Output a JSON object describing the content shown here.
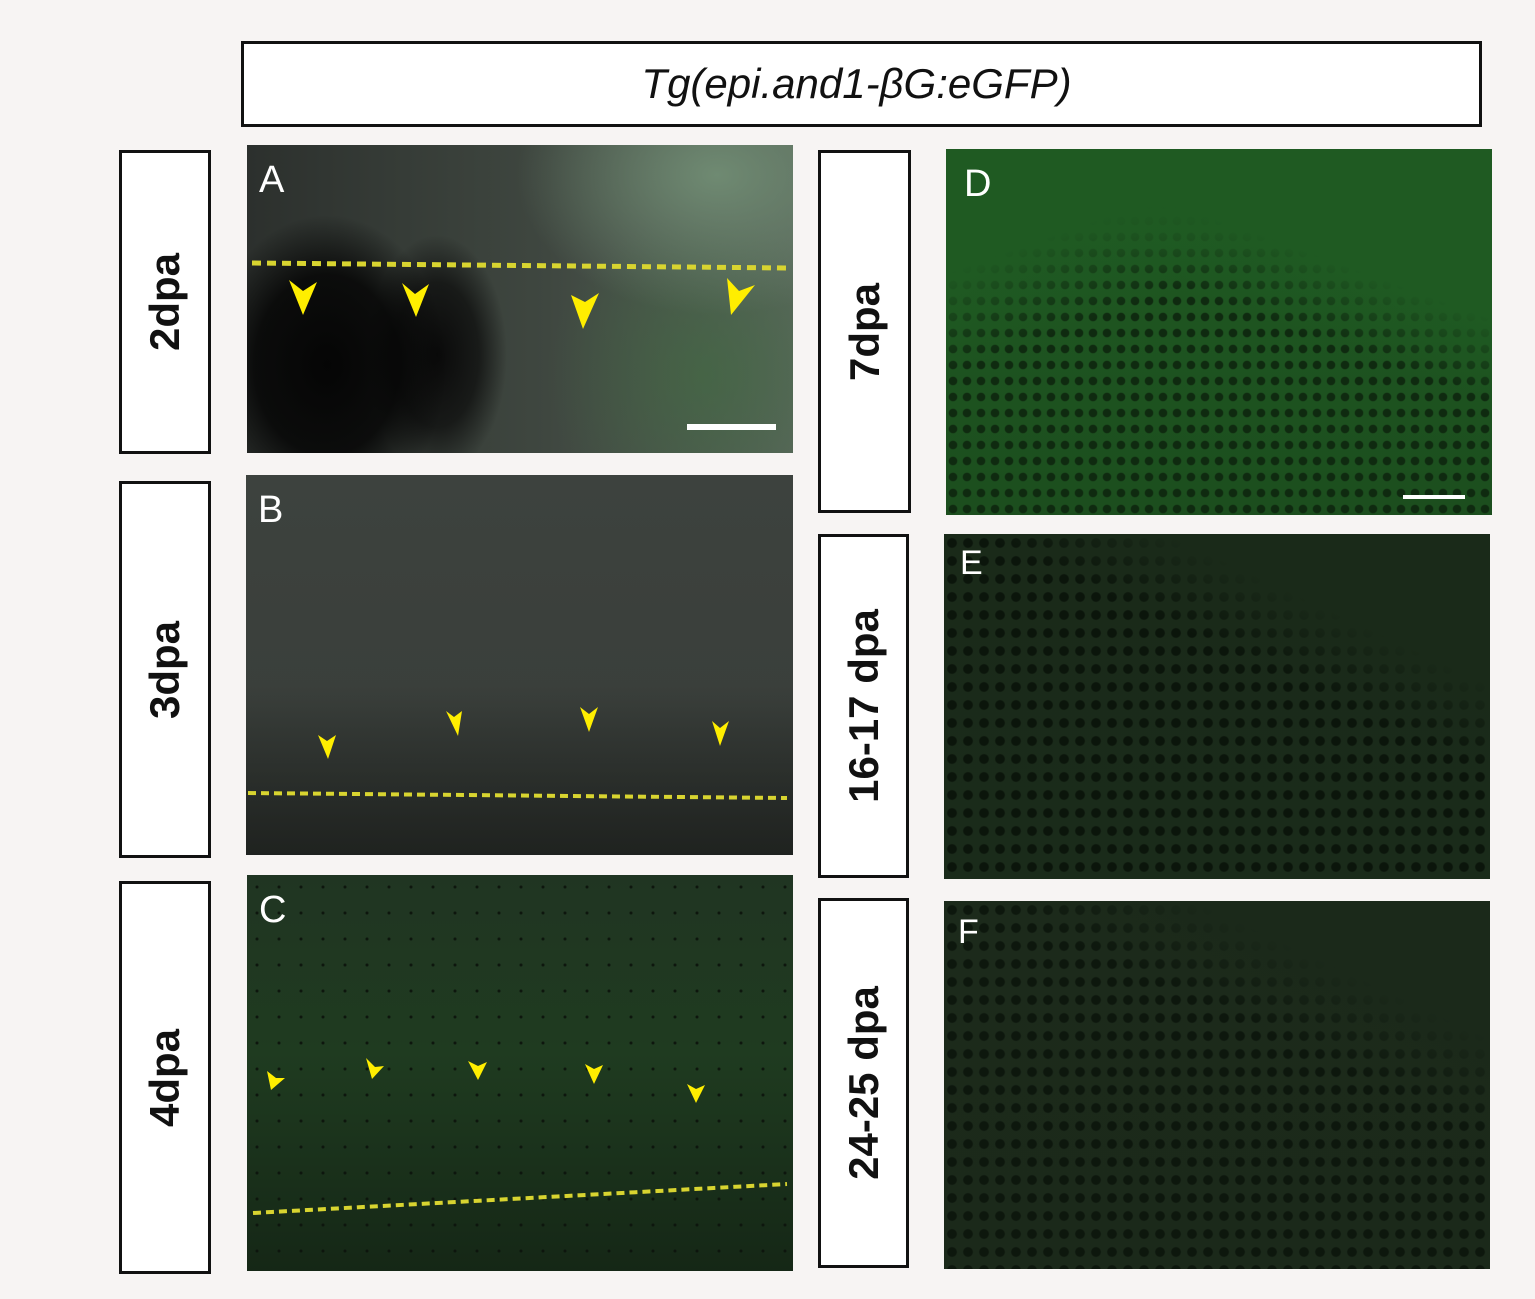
{
  "figure": {
    "title": "Tg(epi.and1-βG:eGFP)",
    "rows": [
      {
        "stage": "2dpa",
        "panel": "A"
      },
      {
        "stage": "3dpa",
        "panel": "B"
      },
      {
        "stage": "4dpa",
        "panel": "C"
      },
      {
        "stage": "7dpa",
        "panel": "D"
      },
      {
        "stage": "16-17 dpa",
        "panel": "E"
      },
      {
        "stage": "24-25 dpa",
        "panel": "F"
      }
    ],
    "colors": {
      "arrowhead": "#ffee00",
      "amputation_line": "#d8d430",
      "scale_bar": "#ffffff"
    }
  }
}
